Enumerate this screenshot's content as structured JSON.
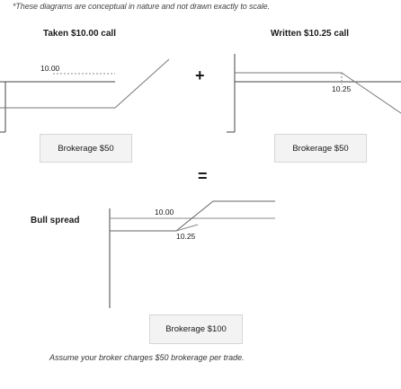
{
  "note": "*These diagrams are conceptual in nature and not drawn exactly to scale.",
  "left_panel": {
    "title": "Taken $10.00 call",
    "strike_label": "10.00",
    "brokerage_label": "Brokerage $50"
  },
  "right_panel": {
    "title": "Written $10.25 call",
    "strike_label": "10.25",
    "brokerage_label": "Brokerage $50"
  },
  "operators": {
    "plus": "+",
    "equals": "="
  },
  "result_panel": {
    "title": "Bull spread",
    "low_strike_label": "10.00",
    "high_strike_label": "10.25",
    "brokerage_label": "Brokerage $100"
  },
  "footer": "Assume your broker charges $50 brokerage per trade."
}
